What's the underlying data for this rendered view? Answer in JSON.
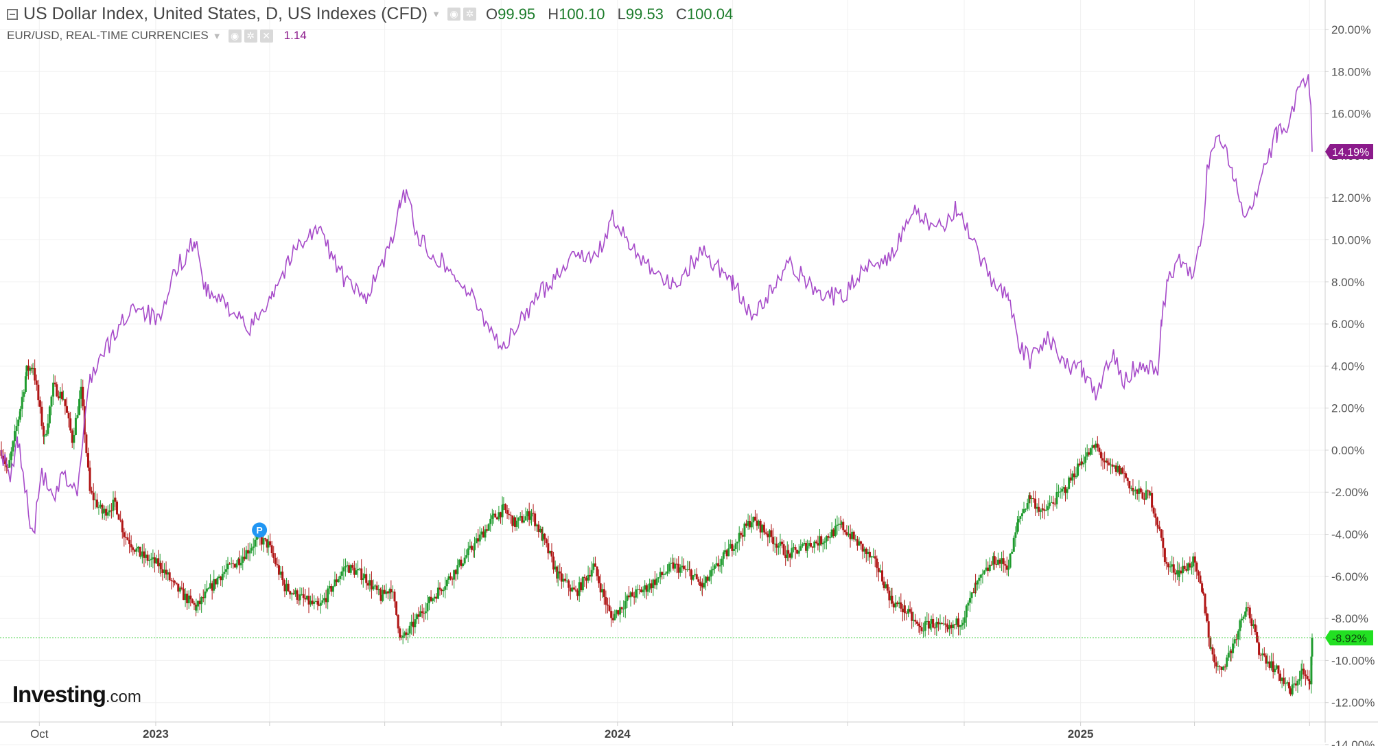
{
  "legend": {
    "main_title": "US Dollar Index, United States, D, US Indexes (CFD)",
    "ohlc": [
      {
        "k": "O",
        "v": "99.95"
      },
      {
        "k": "H",
        "v": "100.10"
      },
      {
        "k": "L",
        "v": "99.53"
      },
      {
        "k": "C",
        "v": "100.04"
      }
    ],
    "compare_title": "EUR/USD, REAL-TIME CURRENCIES",
    "compare_value": "1.14"
  },
  "logo": {
    "brand": "Investing",
    "suffix": ".com"
  },
  "colors": {
    "up": "#1f9b2e",
    "down": "#b01515",
    "compare_line": "#a64ac9",
    "compare_label_bg": "#8b1a8b",
    "last_line": "#33cc33",
    "grid": "#f0f0f0"
  },
  "chart_data": {
    "type": "line",
    "title": "",
    "x_axis": {
      "start": "2022-09-01",
      "end": "2025-07-03",
      "ticks": [
        {
          "date": "2022-10-01",
          "label": "Oct",
          "bold": false
        },
        {
          "date": "2023-01-01",
          "label": "2023",
          "bold": true
        },
        {
          "date": "2023-04-01",
          "label": "",
          "bold": false
        },
        {
          "date": "2023-07-01",
          "label": "",
          "bold": false
        },
        {
          "date": "2023-10-01",
          "label": "",
          "bold": false
        },
        {
          "date": "2024-01-01",
          "label": "2024",
          "bold": true
        },
        {
          "date": "2024-04-01",
          "label": "",
          "bold": false
        },
        {
          "date": "2024-07-01",
          "label": "",
          "bold": false
        },
        {
          "date": "2024-10-01",
          "label": "",
          "bold": false
        },
        {
          "date": "2025-01-01",
          "label": "2025",
          "bold": true
        },
        {
          "date": "2025-04-01",
          "label": "",
          "bold": false
        },
        {
          "date": "2025-07-01",
          "label": "",
          "bold": false
        }
      ]
    },
    "y_axis": {
      "unit": "%",
      "ylim": [
        -14,
        20
      ],
      "ticks": [
        "20.00%",
        "18.00%",
        "16.00%",
        "14.00%",
        "12.00%",
        "10.00%",
        "8.00%",
        "6.00%",
        "4.00%",
        "2.00%",
        "0.00%",
        "-2.00%",
        "-4.00%",
        "-6.00%",
        "-8.00%",
        "-10.00%",
        "-12.00%",
        "-14.00%"
      ],
      "tick_values": [
        20,
        18,
        16,
        14,
        12,
        10,
        8,
        6,
        4,
        2,
        0,
        -2,
        -4,
        -6,
        -8,
        -10,
        -12,
        -14
      ]
    },
    "grid": true,
    "series": [
      {
        "style": "candlestick",
        "last_label": "-8.92%",
        "last_value": -8.92,
        "anchors": [
          {
            "date": "2022-09-01",
            "v": 0.0
          },
          {
            "date": "2022-09-06",
            "v": -1.0
          },
          {
            "date": "2022-09-16",
            "v": 2.0
          },
          {
            "date": "2022-09-21",
            "v": 3.8
          },
          {
            "date": "2022-09-26",
            "v": 4.0
          },
          {
            "date": "2022-10-05",
            "v": 0.5
          },
          {
            "date": "2022-10-12",
            "v": 3.0
          },
          {
            "date": "2022-10-20",
            "v": 2.5
          },
          {
            "date": "2022-10-27",
            "v": 0.5
          },
          {
            "date": "2022-11-03",
            "v": 2.8
          },
          {
            "date": "2022-11-10",
            "v": -2.0
          },
          {
            "date": "2022-11-20",
            "v": -3.0
          },
          {
            "date": "2022-11-30",
            "v": -2.5
          },
          {
            "date": "2022-12-07",
            "v": -4.0
          },
          {
            "date": "2022-12-20",
            "v": -5.0
          },
          {
            "date": "2023-01-05",
            "v": -5.5
          },
          {
            "date": "2023-01-16",
            "v": -6.5
          },
          {
            "date": "2023-02-02",
            "v": -7.5
          },
          {
            "date": "2023-02-20",
            "v": -6.0
          },
          {
            "date": "2023-03-08",
            "v": -5.2
          },
          {
            "date": "2023-03-23",
            "v": -4.2
          },
          {
            "date": "2023-03-31",
            "v": -4.5
          },
          {
            "date": "2023-04-13",
            "v": -6.5
          },
          {
            "date": "2023-04-25",
            "v": -7.0
          },
          {
            "date": "2023-05-10",
            "v": -7.5
          },
          {
            "date": "2023-05-31",
            "v": -5.5
          },
          {
            "date": "2023-06-15",
            "v": -6.0
          },
          {
            "date": "2023-06-28",
            "v": -7.0
          },
          {
            "date": "2023-07-06",
            "v": -6.5
          },
          {
            "date": "2023-07-14",
            "v": -9.0
          },
          {
            "date": "2023-07-18",
            "v": -8.8
          },
          {
            "date": "2023-08-01",
            "v": -7.5
          },
          {
            "date": "2023-08-22",
            "v": -6.0
          },
          {
            "date": "2023-09-10",
            "v": -4.5
          },
          {
            "date": "2023-09-25",
            "v": -3.2
          },
          {
            "date": "2023-10-03",
            "v": -2.8
          },
          {
            "date": "2023-10-12",
            "v": -3.5
          },
          {
            "date": "2023-10-25",
            "v": -3.0
          },
          {
            "date": "2023-11-03",
            "v": -4.2
          },
          {
            "date": "2023-11-15",
            "v": -6.0
          },
          {
            "date": "2023-11-29",
            "v": -6.8
          },
          {
            "date": "2023-12-13",
            "v": -5.5
          },
          {
            "date": "2023-12-27",
            "v": -8.0
          },
          {
            "date": "2024-01-10",
            "v": -7.0
          },
          {
            "date": "2024-01-25",
            "v": -6.5
          },
          {
            "date": "2024-02-14",
            "v": -5.5
          },
          {
            "date": "2024-02-27",
            "v": -5.8
          },
          {
            "date": "2024-03-08",
            "v": -6.5
          },
          {
            "date": "2024-03-26",
            "v": -5.0
          },
          {
            "date": "2024-04-16",
            "v": -3.3
          },
          {
            "date": "2024-04-26",
            "v": -3.8
          },
          {
            "date": "2024-05-15",
            "v": -5.0
          },
          {
            "date": "2024-05-30",
            "v": -4.5
          },
          {
            "date": "2024-06-10",
            "v": -4.3
          },
          {
            "date": "2024-06-26",
            "v": -3.6
          },
          {
            "date": "2024-07-10",
            "v": -4.5
          },
          {
            "date": "2024-07-24",
            "v": -5.5
          },
          {
            "date": "2024-08-05",
            "v": -7.2
          },
          {
            "date": "2024-08-15",
            "v": -7.6
          },
          {
            "date": "2024-08-27",
            "v": -8.5
          },
          {
            "date": "2024-09-05",
            "v": -8.2
          },
          {
            "date": "2024-09-18",
            "v": -8.6
          },
          {
            "date": "2024-09-30",
            "v": -8.0
          },
          {
            "date": "2024-10-10",
            "v": -6.5
          },
          {
            "date": "2024-10-25",
            "v": -5.2
          },
          {
            "date": "2024-11-05",
            "v": -5.5
          },
          {
            "date": "2024-11-13",
            "v": -3.3
          },
          {
            "date": "2024-11-22",
            "v": -2.2
          },
          {
            "date": "2024-12-02",
            "v": -3.0
          },
          {
            "date": "2024-12-20",
            "v": -1.8
          },
          {
            "date": "2025-01-02",
            "v": -0.5
          },
          {
            "date": "2025-01-13",
            "v": 0.2
          },
          {
            "date": "2025-01-22",
            "v": -0.8
          },
          {
            "date": "2025-02-03",
            "v": -1.0
          },
          {
            "date": "2025-02-12",
            "v": -2.0
          },
          {
            "date": "2025-02-25",
            "v": -2.2
          },
          {
            "date": "2025-03-03",
            "v": -3.5
          },
          {
            "date": "2025-03-10",
            "v": -5.5
          },
          {
            "date": "2025-03-20",
            "v": -5.8
          },
          {
            "date": "2025-03-31",
            "v": -5.3
          },
          {
            "date": "2025-04-08",
            "v": -7.0
          },
          {
            "date": "2025-04-14",
            "v": -9.5
          },
          {
            "date": "2025-04-21",
            "v": -10.5
          },
          {
            "date": "2025-04-30",
            "v": -9.5
          },
          {
            "date": "2025-05-12",
            "v": -7.3
          },
          {
            "date": "2025-05-22",
            "v": -9.5
          },
          {
            "date": "2025-06-05",
            "v": -10.5
          },
          {
            "date": "2025-06-16",
            "v": -11.5
          },
          {
            "date": "2025-06-25",
            "v": -10.5
          },
          {
            "date": "2025-07-01",
            "v": -11.2
          },
          {
            "date": "2025-07-03",
            "v": -8.92
          }
        ]
      },
      {
        "style": "line",
        "name": "EUR/USD, REAL-TIME CURRENCIES",
        "last_label": "14.19%",
        "last_value": 14.19,
        "anchors": [
          {
            "date": "2022-09-01",
            "v": 0.0
          },
          {
            "date": "2022-09-08",
            "v": -1.5
          },
          {
            "date": "2022-09-14",
            "v": 0.5
          },
          {
            "date": "2022-09-26",
            "v": -4.2
          },
          {
            "date": "2022-10-03",
            "v": -1.0
          },
          {
            "date": "2022-10-12",
            "v": -2.5
          },
          {
            "date": "2022-10-20",
            "v": -1.2
          },
          {
            "date": "2022-10-31",
            "v": -2.0
          },
          {
            "date": "2022-11-10",
            "v": 3.5
          },
          {
            "date": "2022-11-30",
            "v": 5.5
          },
          {
            "date": "2022-12-15",
            "v": 7.0
          },
          {
            "date": "2023-01-05",
            "v": 6.0
          },
          {
            "date": "2023-01-16",
            "v": 8.5
          },
          {
            "date": "2023-02-01",
            "v": 10.0
          },
          {
            "date": "2023-02-10",
            "v": 7.5
          },
          {
            "date": "2023-03-01",
            "v": 6.8
          },
          {
            "date": "2023-03-15",
            "v": 5.6
          },
          {
            "date": "2023-04-03",
            "v": 7.5
          },
          {
            "date": "2023-04-26",
            "v": 10.0
          },
          {
            "date": "2023-05-10",
            "v": 10.5
          },
          {
            "date": "2023-05-31",
            "v": 8.0
          },
          {
            "date": "2023-06-15",
            "v": 7.2
          },
          {
            "date": "2023-07-03",
            "v": 9.3
          },
          {
            "date": "2023-07-13",
            "v": 11.5
          },
          {
            "date": "2023-07-18",
            "v": 12.3
          },
          {
            "date": "2023-07-28",
            "v": 10.0
          },
          {
            "date": "2023-08-15",
            "v": 9.0
          },
          {
            "date": "2023-09-05",
            "v": 7.5
          },
          {
            "date": "2023-09-26",
            "v": 5.5
          },
          {
            "date": "2023-10-03",
            "v": 4.8
          },
          {
            "date": "2023-10-20",
            "v": 6.5
          },
          {
            "date": "2023-11-15",
            "v": 8.5
          },
          {
            "date": "2023-12-01",
            "v": 9.5
          },
          {
            "date": "2023-12-14",
            "v": 9.0
          },
          {
            "date": "2023-12-28",
            "v": 11.0
          },
          {
            "date": "2024-01-10",
            "v": 9.8
          },
          {
            "date": "2024-02-01",
            "v": 8.5
          },
          {
            "date": "2024-02-14",
            "v": 7.8
          },
          {
            "date": "2024-03-08",
            "v": 9.5
          },
          {
            "date": "2024-04-01",
            "v": 8.0
          },
          {
            "date": "2024-04-16",
            "v": 6.3
          },
          {
            "date": "2024-05-01",
            "v": 7.5
          },
          {
            "date": "2024-05-15",
            "v": 8.8
          },
          {
            "date": "2024-06-10",
            "v": 7.5
          },
          {
            "date": "2024-06-26",
            "v": 7.2
          },
          {
            "date": "2024-07-15",
            "v": 8.8
          },
          {
            "date": "2024-08-05",
            "v": 9.3
          },
          {
            "date": "2024-08-23",
            "v": 11.3
          },
          {
            "date": "2024-09-10",
            "v": 10.5
          },
          {
            "date": "2024-09-25",
            "v": 11.5
          },
          {
            "date": "2024-10-10",
            "v": 9.5
          },
          {
            "date": "2024-10-23",
            "v": 8.0
          },
          {
            "date": "2024-11-05",
            "v": 7.5
          },
          {
            "date": "2024-11-13",
            "v": 5.0
          },
          {
            "date": "2024-11-22",
            "v": 4.2
          },
          {
            "date": "2024-12-06",
            "v": 5.5
          },
          {
            "date": "2024-12-20",
            "v": 4.0
          },
          {
            "date": "2025-01-02",
            "v": 3.8
          },
          {
            "date": "2025-01-13",
            "v": 2.5
          },
          {
            "date": "2025-01-27",
            "v": 4.8
          },
          {
            "date": "2025-02-03",
            "v": 3.3
          },
          {
            "date": "2025-02-18",
            "v": 4.2
          },
          {
            "date": "2025-03-03",
            "v": 3.8
          },
          {
            "date": "2025-03-06",
            "v": 6.0
          },
          {
            "date": "2025-03-11",
            "v": 8.3
          },
          {
            "date": "2025-03-20",
            "v": 9.0
          },
          {
            "date": "2025-03-31",
            "v": 8.2
          },
          {
            "date": "2025-04-07",
            "v": 10.0
          },
          {
            "date": "2025-04-11",
            "v": 13.5
          },
          {
            "date": "2025-04-21",
            "v": 15.0
          },
          {
            "date": "2025-05-01",
            "v": 13.3
          },
          {
            "date": "2025-05-12",
            "v": 11.0
          },
          {
            "date": "2025-05-26",
            "v": 13.5
          },
          {
            "date": "2025-06-05",
            "v": 15.0
          },
          {
            "date": "2025-06-13",
            "v": 15.5
          },
          {
            "date": "2025-06-19",
            "v": 16.5
          },
          {
            "date": "2025-06-30",
            "v": 18.0
          },
          {
            "date": "2025-07-01",
            "v": 17.3
          },
          {
            "date": "2025-07-02",
            "v": 16.0
          },
          {
            "date": "2025-07-03",
            "v": 14.19
          }
        ]
      }
    ],
    "marker": {
      "date": "2023-03-24",
      "v": -3.8,
      "label": "P"
    }
  }
}
